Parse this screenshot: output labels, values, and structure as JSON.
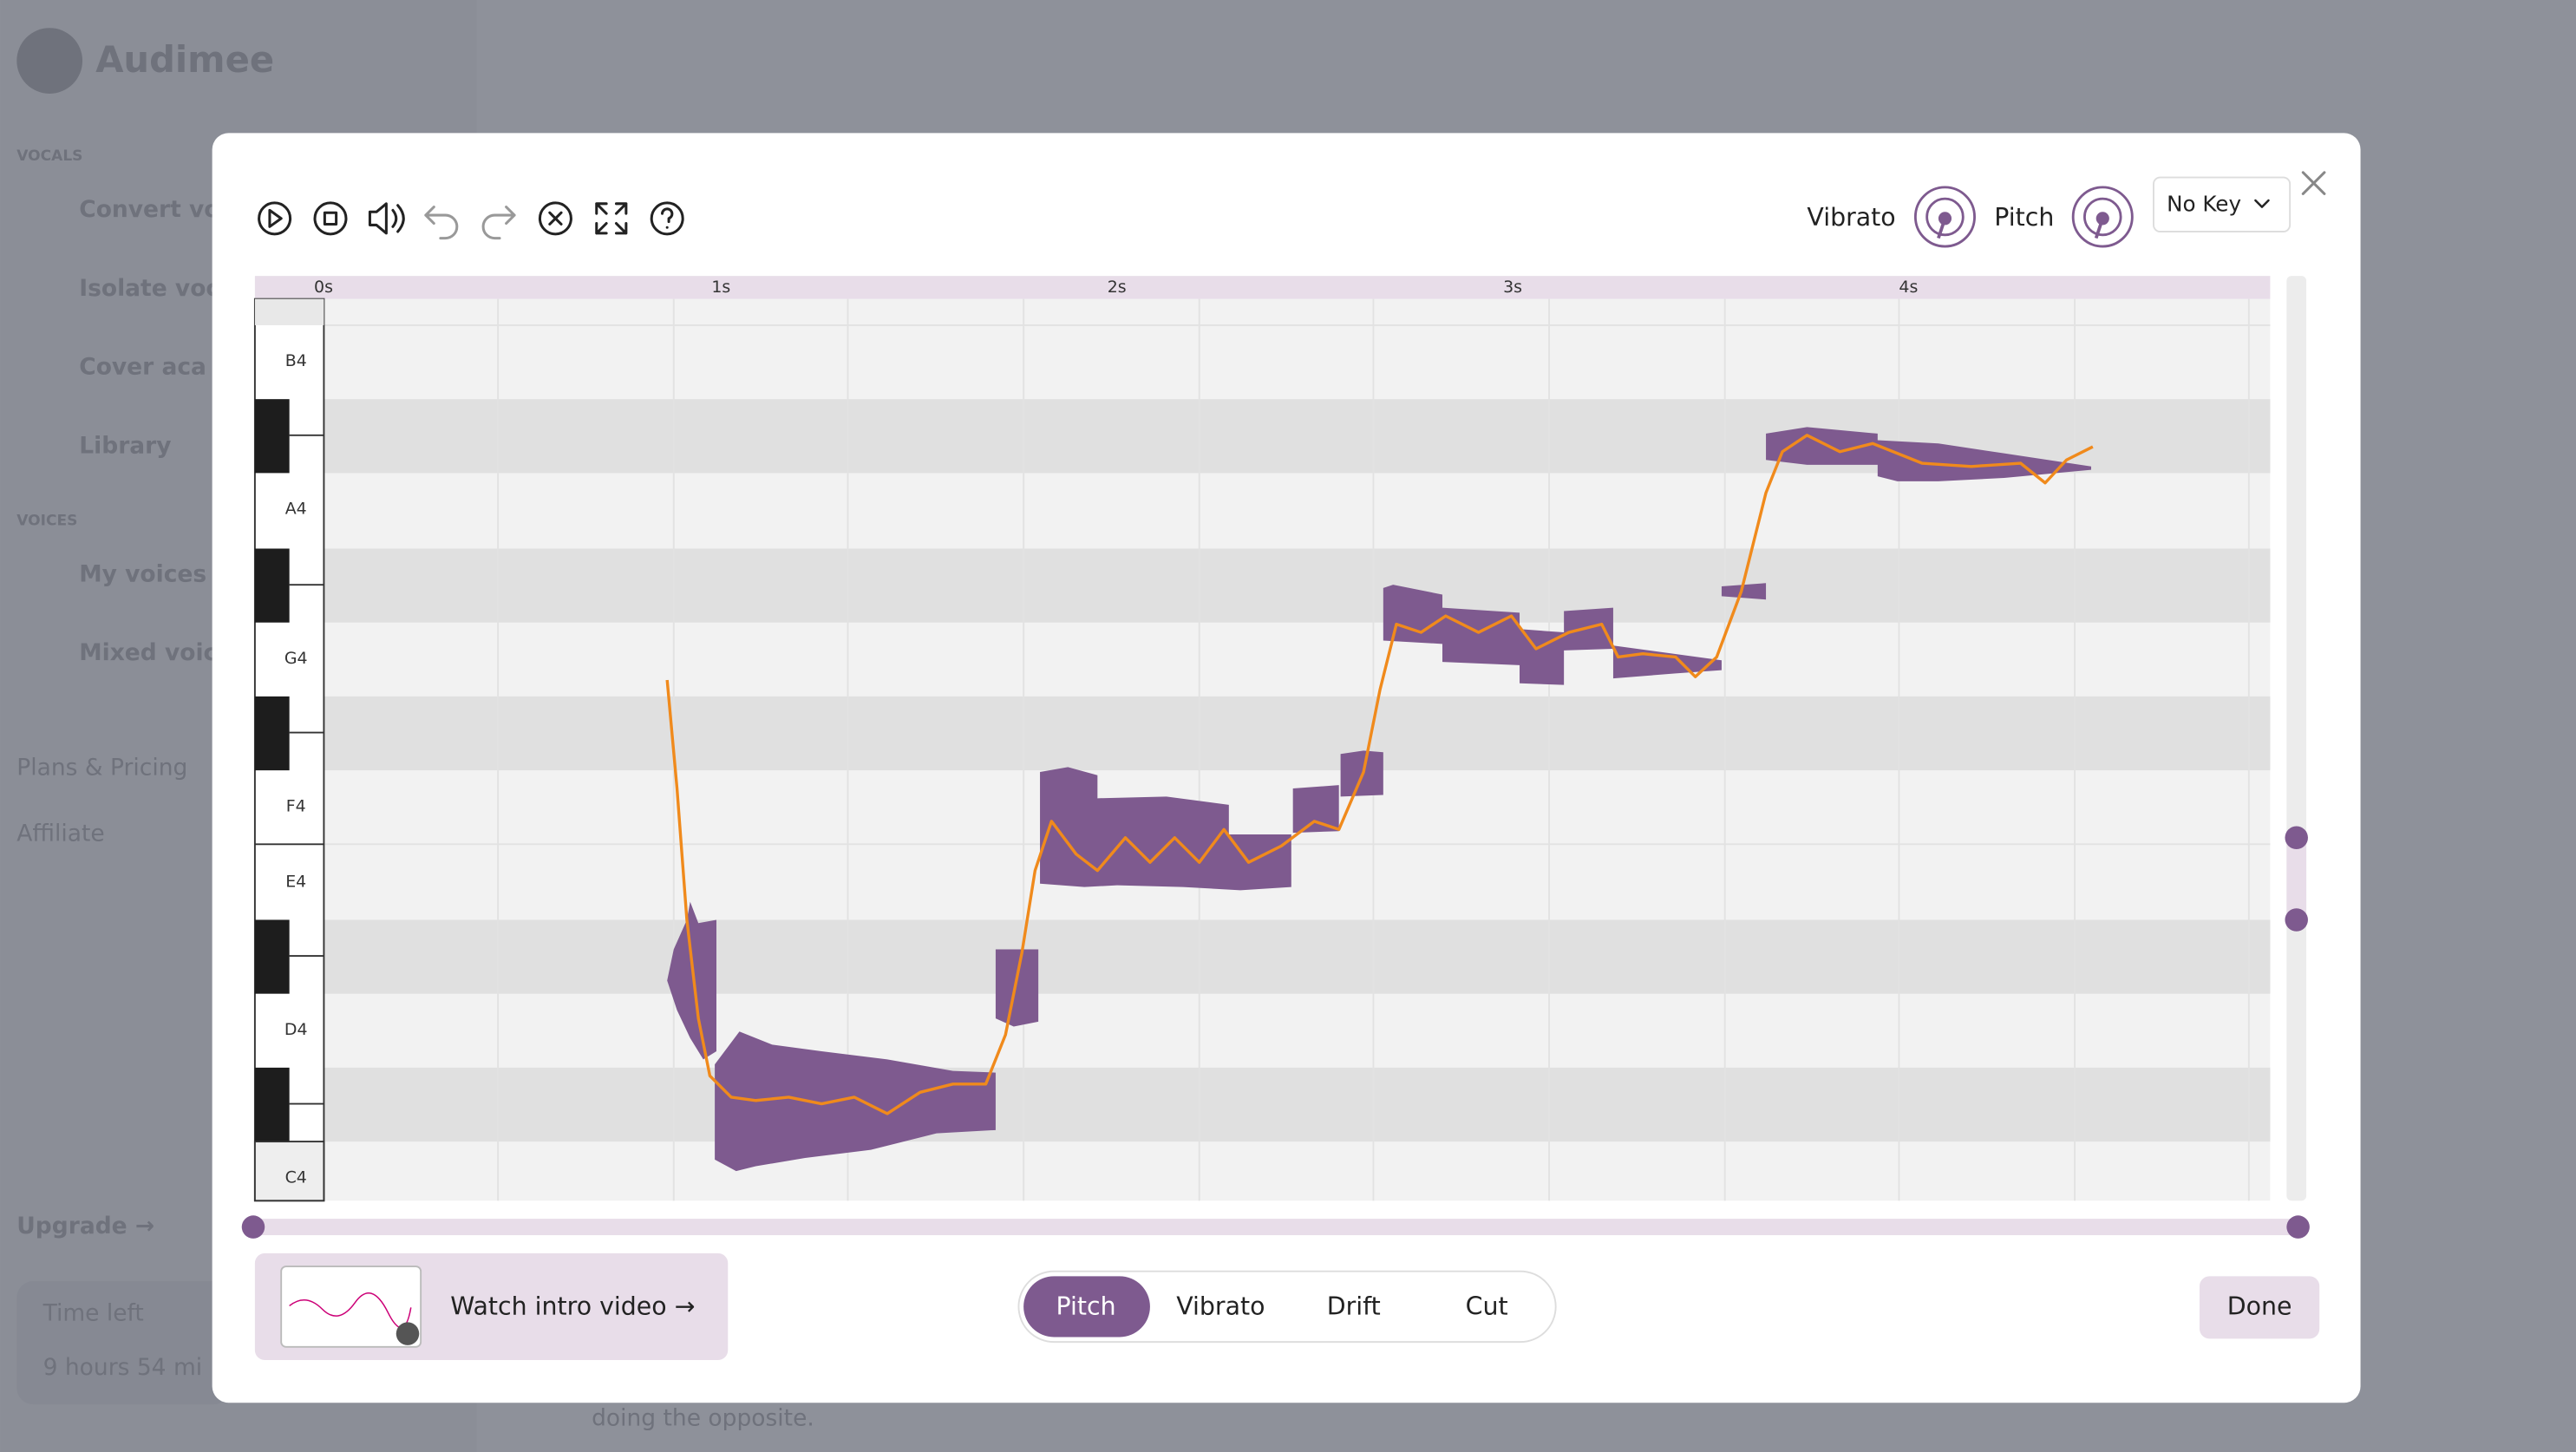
{
  "background": {
    "app_name": "Audimee",
    "sections": [
      "VOCALS",
      "VOICES"
    ],
    "nav": [
      "Convert vo",
      "Isolate voc",
      "Cover aca",
      "Library",
      "My voices",
      "Mixed voic",
      "Plans & Pricing",
      "Affiliate"
    ],
    "upgrade": "Upgrade →",
    "time_left": "Time left",
    "time_value": "9 hours 54 mi",
    "footer_text": "doing the opposite."
  },
  "modal": {
    "vibrato_label": "Vibrato",
    "pitch_label": "Pitch",
    "key_select": "No Key",
    "time_labels": [
      "0s",
      "1s",
      "2s",
      "3s",
      "4s"
    ],
    "note_labels": [
      "B4",
      "A4",
      "G4",
      "F4",
      "E4",
      "D4",
      "C4"
    ],
    "intro_link": "Watch intro video →",
    "tabs": [
      "Pitch",
      "Vibrato",
      "Drift",
      "Cut"
    ],
    "done": "Done"
  }
}
